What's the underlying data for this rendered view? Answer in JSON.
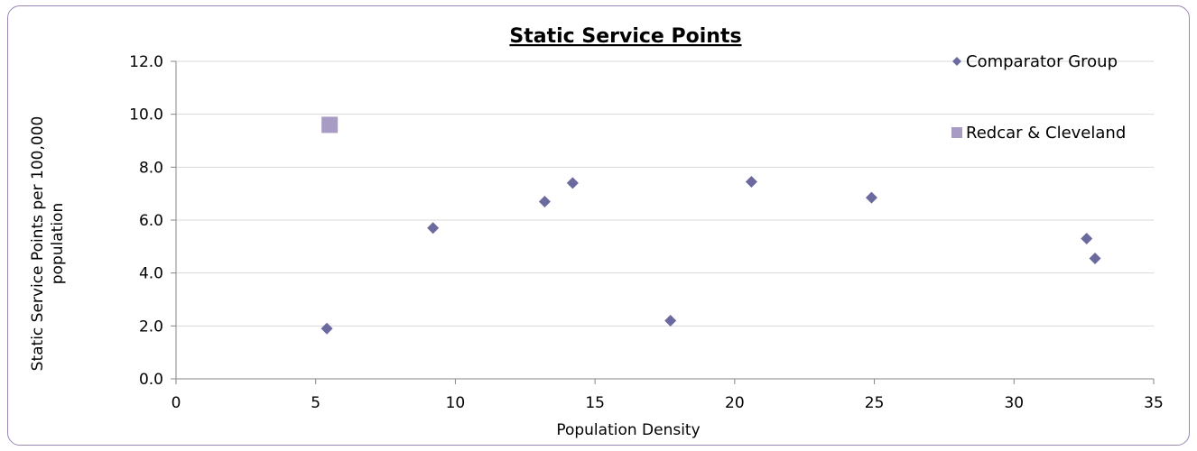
{
  "chart_data": {
    "type": "scatter",
    "title": "Static Service Points",
    "xlabel": "Population Density",
    "ylabel_lines": [
      "Static Service Points per 100,000",
      "population"
    ],
    "xlim": [
      0,
      35
    ],
    "ylim": [
      0,
      12
    ],
    "x_ticks": [
      0,
      5,
      10,
      15,
      20,
      25,
      30,
      35
    ],
    "y_ticks": [
      "0.0",
      "2.0",
      "4.0",
      "6.0",
      "8.0",
      "10.0",
      "12.0"
    ],
    "grid": "horizontal",
    "legend_position": "top-right",
    "series": [
      {
        "name": "Comparator Group",
        "marker": "diamond",
        "color": "#6b6a9f",
        "points": [
          {
            "x": 5.4,
            "y": 1.9
          },
          {
            "x": 9.2,
            "y": 5.7
          },
          {
            "x": 13.2,
            "y": 6.7
          },
          {
            "x": 14.2,
            "y": 7.4
          },
          {
            "x": 17.7,
            "y": 2.2
          },
          {
            "x": 20.6,
            "y": 7.45
          },
          {
            "x": 24.9,
            "y": 6.85
          },
          {
            "x": 32.6,
            "y": 5.3
          },
          {
            "x": 32.9,
            "y": 4.55
          }
        ]
      },
      {
        "name": "Redcar & Cleveland",
        "marker": "square",
        "color": "#a99cc4",
        "points": [
          {
            "x": 5.5,
            "y": 9.6
          }
        ]
      }
    ]
  }
}
